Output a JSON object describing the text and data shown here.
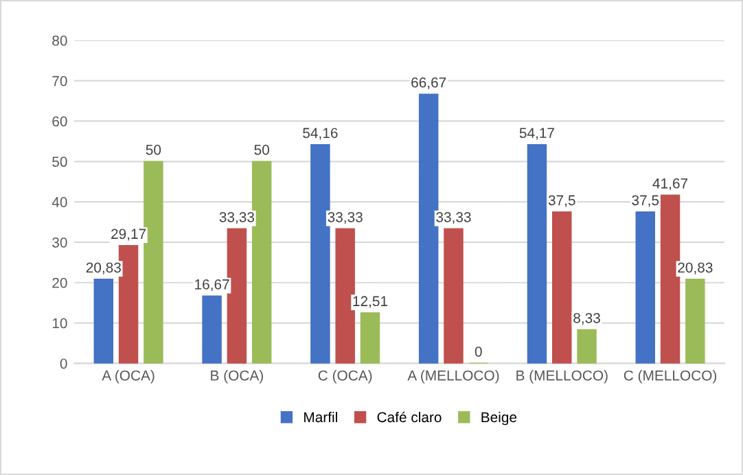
{
  "chart_data": {
    "type": "bar",
    "categories": [
      "A (OCA)",
      "B (OCA)",
      "C (OCA)",
      "A (MELLOCO)",
      "B (MELLOCO)",
      "C (MELLOCO)"
    ],
    "series": [
      {
        "name": "Marfil",
        "color": "#4472c4",
        "values": [
          20.83,
          16.67,
          54.16,
          66.67,
          54.17,
          37.5
        ],
        "value_labels": [
          "20,83",
          "16,67",
          "54,16",
          "66,67",
          "54,17",
          "37,5"
        ]
      },
      {
        "name": "Café claro",
        "color": "#c0504d",
        "values": [
          29.17,
          33.33,
          33.33,
          33.33,
          37.5,
          41.67
        ],
        "value_labels": [
          "29,17",
          "33,33",
          "33,33",
          "33,33",
          "37,5",
          "41,67"
        ]
      },
      {
        "name": "Beige",
        "color": "#9bbb59",
        "values": [
          50,
          50,
          12.51,
          0,
          8.33,
          20.83
        ],
        "value_labels": [
          "50",
          "50",
          "12,51",
          "0",
          "8,33",
          "20,83"
        ]
      }
    ],
    "ylim": [
      0,
      80
    ],
    "yticks": [
      0,
      10,
      20,
      30,
      40,
      50,
      60,
      70,
      80
    ],
    "grid": "y",
    "legend": "bottom"
  }
}
